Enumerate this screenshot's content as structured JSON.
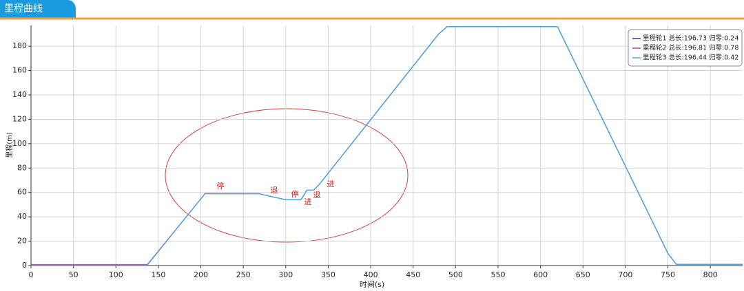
{
  "panel_title": "里程曲线",
  "chart_data": {
    "type": "line",
    "x_label": "时间(s)",
    "y_label": "里程(m)",
    "x": [
      0,
      137,
      205,
      268,
      300,
      318,
      325,
      333,
      340,
      480,
      490,
      620,
      750,
      760,
      838
    ],
    "series": [
      {
        "name": "里程轮1 总长:196.73 归零:0.24",
        "color": "#3b3b9e",
        "values": [
          0.5,
          0.5,
          59,
          59,
          54,
          54,
          62,
          62,
          67,
          190,
          196,
          196,
          10,
          1,
          1
        ]
      },
      {
        "name": "里程轮2 总长:196.81 归零:0.78",
        "color": "#c0408a",
        "values": [
          0.8,
          0.8,
          59,
          59,
          54,
          54,
          62,
          62,
          67,
          190,
          196,
          196,
          10,
          1,
          1
        ]
      },
      {
        "name": "里程轮3 总长:196.44 归零:0.42",
        "color": "#45aee2",
        "values": [
          0.4,
          0.4,
          59,
          59,
          54,
          54,
          62,
          62,
          67,
          190,
          196,
          196,
          10,
          1,
          1
        ]
      }
    ],
    "annotations": [
      "停",
      "退",
      "停",
      "进",
      "退",
      "进"
    ],
    "xlim": [
      0,
      838
    ],
    "ylim": [
      0,
      197
    ],
    "xticks": [
      0,
      50,
      100,
      150,
      200,
      250,
      300,
      350,
      400,
      450,
      500,
      550,
      600,
      650,
      700,
      750,
      800
    ],
    "yticks": [
      0,
      20,
      40,
      60,
      80,
      100,
      120,
      140,
      160,
      180
    ],
    "grid": true,
    "legend": "upper right"
  }
}
